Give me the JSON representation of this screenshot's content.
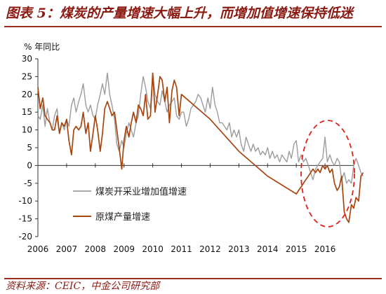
{
  "figure": {
    "title": "图表 5：煤炭的产量增速大幅上升，而增加值增速保持低迷",
    "source": "资料来源：CEIC，中金公司研究部"
  },
  "colors": {
    "gray_series": "#9c9c9c",
    "red_series": "#a8450f",
    "title": "#8b1a12",
    "ellipse": "#e0201c"
  },
  "chart_data": {
    "type": "line",
    "ylabel": "% 年同比",
    "ylim": [
      -20,
      30
    ],
    "yticks": [
      -20,
      -15,
      -10,
      -5,
      0,
      5,
      10,
      15,
      20,
      25,
      30
    ],
    "xlim": [
      2006,
      2017
    ],
    "xticks": [
      "2006",
      "2007",
      "2008",
      "2009",
      "2010",
      "2011",
      "2012",
      "2013",
      "2014",
      "2015",
      "2016"
    ],
    "grid": false,
    "legend": "center-left",
    "annotation": "dashed red ellipse around 2015-2016",
    "series": [
      {
        "name": "煤炭开采业增加值增速",
        "color": "gray",
        "points": [
          [
            2006.0,
            14
          ],
          [
            2006.08,
            13
          ],
          [
            2006.17,
            17
          ],
          [
            2006.25,
            11
          ],
          [
            2006.33,
            16
          ],
          [
            2006.42,
            12
          ],
          [
            2006.5,
            10
          ],
          [
            2006.58,
            14
          ],
          [
            2006.67,
            16
          ],
          [
            2006.75,
            9
          ],
          [
            2006.83,
            12
          ],
          [
            2006.92,
            10
          ],
          [
            2007.0,
            13
          ],
          [
            2007.08,
            11
          ],
          [
            2007.17,
            17
          ],
          [
            2007.25,
            19
          ],
          [
            2007.33,
            15
          ],
          [
            2007.42,
            18
          ],
          [
            2007.5,
            20
          ],
          [
            2007.58,
            23
          ],
          [
            2007.67,
            17
          ],
          [
            2007.75,
            15
          ],
          [
            2007.83,
            17
          ],
          [
            2007.92,
            14
          ],
          [
            2008.0,
            13
          ],
          [
            2008.08,
            17
          ],
          [
            2008.17,
            20
          ],
          [
            2008.25,
            23
          ],
          [
            2008.33,
            20
          ],
          [
            2008.42,
            26
          ],
          [
            2008.5,
            20
          ],
          [
            2008.58,
            17
          ],
          [
            2008.67,
            13
          ],
          [
            2008.75,
            6
          ],
          [
            2008.83,
            4
          ],
          [
            2008.92,
            7
          ],
          [
            2009.0,
            5
          ],
          [
            2009.08,
            9
          ],
          [
            2009.17,
            12
          ],
          [
            2009.25,
            10
          ],
          [
            2009.33,
            8
          ],
          [
            2009.42,
            12
          ],
          [
            2009.5,
            14
          ],
          [
            2009.58,
            20
          ],
          [
            2009.67,
            25
          ],
          [
            2009.75,
            22
          ],
          [
            2009.83,
            18
          ],
          [
            2009.92,
            16
          ],
          [
            2010.0,
            26
          ],
          [
            2010.08,
            20
          ],
          [
            2010.17,
            18
          ],
          [
            2010.25,
            17
          ],
          [
            2010.33,
            21
          ],
          [
            2010.42,
            18
          ],
          [
            2010.5,
            15
          ],
          [
            2010.58,
            17
          ],
          [
            2010.67,
            18
          ],
          [
            2010.75,
            19
          ],
          [
            2010.83,
            14
          ],
          [
            2010.92,
            13
          ],
          [
            2011.0,
            15
          ],
          [
            2011.08,
            15
          ],
          [
            2011.17,
            11
          ],
          [
            2011.25,
            13
          ],
          [
            2011.33,
            16
          ],
          [
            2011.42,
            17
          ],
          [
            2011.5,
            18
          ],
          [
            2011.58,
            20
          ],
          [
            2011.67,
            19
          ],
          [
            2011.75,
            17
          ],
          [
            2011.83,
            15
          ],
          [
            2011.92,
            19
          ],
          [
            2012.0,
            16
          ],
          [
            2012.08,
            22
          ],
          [
            2012.17,
            17
          ],
          [
            2012.25,
            15
          ],
          [
            2012.33,
            12
          ],
          [
            2012.42,
            12
          ],
          [
            2012.5,
            11
          ],
          [
            2012.58,
            10
          ],
          [
            2012.67,
            12
          ],
          [
            2012.75,
            8
          ],
          [
            2012.83,
            10
          ],
          [
            2012.92,
            8
          ],
          [
            2013.0,
            10
          ],
          [
            2013.08,
            6
          ],
          [
            2013.17,
            4
          ],
          [
            2013.25,
            8
          ],
          [
            2013.33,
            6
          ],
          [
            2013.42,
            4
          ],
          [
            2013.5,
            6
          ],
          [
            2013.58,
            4
          ],
          [
            2013.67,
            5
          ],
          [
            2013.75,
            3
          ],
          [
            2013.83,
            4
          ],
          [
            2013.92,
            3
          ],
          [
            2014.0,
            5
          ],
          [
            2014.08,
            2
          ],
          [
            2014.17,
            4
          ],
          [
            2014.25,
            2
          ],
          [
            2014.33,
            3
          ],
          [
            2014.42,
            1
          ],
          [
            2014.5,
            3
          ],
          [
            2014.58,
            2
          ],
          [
            2014.67,
            1
          ],
          [
            2014.75,
            4
          ],
          [
            2014.83,
            2
          ],
          [
            2014.92,
            6
          ],
          [
            2015.0,
            7
          ],
          [
            2015.08,
            1
          ],
          [
            2015.17,
            3
          ],
          [
            2015.25,
            1
          ],
          [
            2015.33,
            2
          ],
          [
            2015.42,
            0
          ],
          [
            2015.5,
            -2
          ],
          [
            2015.58,
            -4
          ],
          [
            2015.67,
            -1
          ],
          [
            2015.75,
            0
          ],
          [
            2015.83,
            1
          ],
          [
            2015.92,
            2
          ],
          [
            2016.0,
            8
          ],
          [
            2016.08,
            1
          ],
          [
            2016.17,
            3
          ],
          [
            2016.25,
            1
          ],
          [
            2016.33,
            0
          ],
          [
            2016.42,
            2
          ],
          [
            2016.5,
            1
          ],
          [
            2016.58,
            -4
          ],
          [
            2016.67,
            -2
          ],
          [
            2016.75,
            -5
          ],
          [
            2016.83,
            -4
          ],
          [
            2016.92,
            -5
          ],
          [
            2017.0,
            0
          ],
          [
            2017.08,
            2
          ],
          [
            2017.17,
            0
          ],
          [
            2017.25,
            -2
          ],
          [
            2017.33,
            -3
          ]
        ]
      },
      {
        "name": "原煤产量增速",
        "color": "dark-red",
        "points": [
          [
            2006.0,
            22
          ],
          [
            2006.08,
            16
          ],
          [
            2006.17,
            19
          ],
          [
            2006.25,
            14
          ],
          [
            2006.33,
            13
          ],
          [
            2006.42,
            12
          ],
          [
            2006.5,
            10
          ],
          [
            2006.58,
            10
          ],
          [
            2006.67,
            14
          ],
          [
            2006.75,
            9
          ],
          [
            2006.83,
            12
          ],
          [
            2006.92,
            11
          ],
          [
            2007.0,
            13
          ],
          [
            2007.08,
            7
          ],
          [
            2007.17,
            3
          ],
          [
            2007.25,
            10
          ],
          [
            2007.33,
            11
          ],
          [
            2007.42,
            10
          ],
          [
            2007.5,
            11
          ],
          [
            2007.58,
            15
          ],
          [
            2007.67,
            9
          ],
          [
            2007.75,
            12
          ],
          [
            2007.83,
            4
          ],
          [
            2007.92,
            9
          ],
          [
            2008.0,
            14
          ],
          [
            2008.08,
            10
          ],
          [
            2008.17,
            4
          ],
          [
            2008.25,
            9
          ],
          [
            2008.33,
            16
          ],
          [
            2008.42,
            18
          ],
          [
            2008.5,
            16
          ],
          [
            2008.58,
            14
          ],
          [
            2008.67,
            15
          ],
          [
            2008.75,
            10
          ],
          [
            2008.83,
            5
          ],
          [
            2008.92,
            -1
          ],
          [
            2009.0,
            7
          ],
          [
            2009.08,
            11
          ],
          [
            2009.17,
            8
          ],
          [
            2009.25,
            12
          ],
          [
            2009.33,
            15
          ],
          [
            2009.42,
            12
          ],
          [
            2009.5,
            17
          ],
          [
            2009.58,
            16
          ],
          [
            2009.67,
            14
          ],
          [
            2009.75,
            20
          ],
          [
            2009.83,
            13
          ],
          [
            2009.92,
            14
          ],
          [
            2010.0,
            26
          ],
          [
            2010.08,
            15
          ],
          [
            2010.17,
            20
          ],
          [
            2010.25,
            25
          ],
          [
            2010.33,
            24
          ],
          [
            2010.42,
            18
          ],
          [
            2010.5,
            22
          ],
          [
            2010.58,
            12
          ],
          [
            2010.67,
            21
          ],
          [
            2010.75,
            24
          ],
          [
            2010.83,
            22
          ],
          [
            2010.92,
            14
          ],
          [
            2011.0,
            20
          ],
          [
            2012.0,
            13
          ],
          [
            2013.0,
            4
          ],
          [
            2014.0,
            -3
          ],
          [
            2015.0,
            -8
          ],
          [
            2015.08,
            -7
          ],
          [
            2015.17,
            -6
          ],
          [
            2015.25,
            -5
          ],
          [
            2015.33,
            -4
          ],
          [
            2015.42,
            -3
          ],
          [
            2015.5,
            -2
          ],
          [
            2015.58,
            -1
          ],
          [
            2015.67,
            -2
          ],
          [
            2015.75,
            -1
          ],
          [
            2015.83,
            -2
          ],
          [
            2015.92,
            0
          ],
          [
            2016.0,
            -1
          ],
          [
            2016.08,
            0
          ],
          [
            2016.17,
            -2
          ],
          [
            2016.25,
            -1
          ],
          [
            2016.33,
            -5
          ],
          [
            2016.42,
            -7
          ],
          [
            2016.5,
            -6
          ],
          [
            2016.58,
            -3
          ],
          [
            2016.67,
            -13
          ],
          [
            2016.75,
            -15
          ],
          [
            2016.83,
            -16
          ],
          [
            2016.92,
            -11
          ],
          [
            2017.0,
            -12
          ],
          [
            2017.08,
            -9
          ],
          [
            2017.17,
            -10
          ],
          [
            2017.25,
            -3
          ],
          [
            2017.33,
            -2
          ]
        ]
      }
    ]
  }
}
